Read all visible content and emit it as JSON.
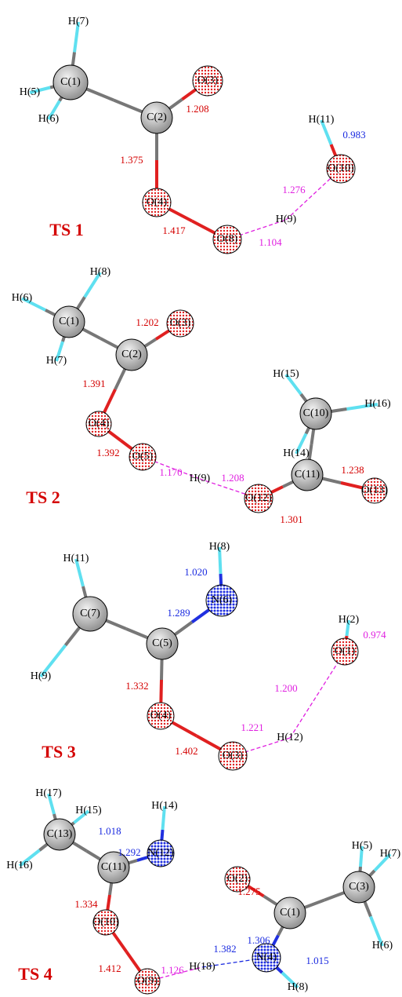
{
  "panels": [
    {
      "title": "TS 1",
      "atoms": [
        "H(7)",
        "C(1)",
        "H(5)",
        "H(6)",
        "C(2)",
        "O(3)",
        "O(4)",
        "O(8)",
        "H(9)",
        "O(10)",
        "H(11)"
      ],
      "bond_lengths": [
        "1.208",
        "1.375",
        "1.417",
        "1.104",
        "1.276",
        "0.983"
      ]
    },
    {
      "title": "TS 2",
      "atoms": [
        "H(8)",
        "H(6)",
        "C(1)",
        "H(7)",
        "C(2)",
        "O(3)",
        "O(4)",
        "O(5)",
        "H(9)",
        "O(12)",
        "C(11)",
        "C(10)",
        "H(15)",
        "H(16)",
        "H(14)",
        "O(13)"
      ],
      "bond_lengths": [
        "1.202",
        "1.391",
        "1.392",
        "1.170",
        "1.208",
        "1.301",
        "1.238"
      ]
    },
    {
      "title": "TS 3",
      "atoms": [
        "H(8)",
        "N(6)",
        "H(11)",
        "C(7)",
        "H(9)",
        "C(5)",
        "O(4)",
        "O(3)",
        "H(12)",
        "O(1)",
        "H(2)"
      ],
      "bond_lengths": [
        "1.020",
        "1.289",
        "1.332",
        "1.402",
        "1.221",
        "1.200",
        "0.974"
      ]
    },
    {
      "title": "TS 4",
      "atoms": [
        "H(17)",
        "H(15)",
        "C(13)",
        "H(16)",
        "C(11)",
        "N(12)",
        "H(14)",
        "O(10)",
        "O(9)",
        "H(18)",
        "N(4)",
        "H(8)",
        "O(2)",
        "C(1)",
        "C(3)",
        "H(5)",
        "H(7)",
        "H(6)"
      ],
      "bond_lengths": [
        "1.018",
        "1.292",
        "1.334",
        "1.412",
        "1.126",
        "1.382",
        "1.306",
        "1.015",
        "1.275"
      ]
    }
  ]
}
